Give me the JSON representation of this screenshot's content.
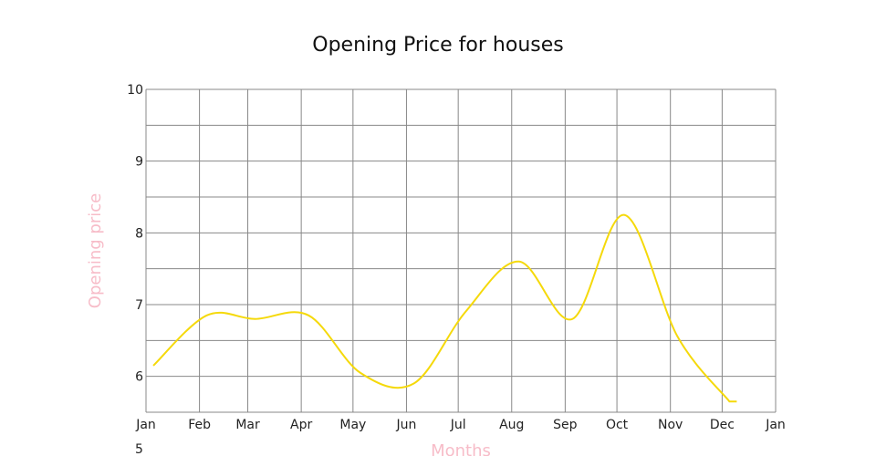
{
  "chart_data": {
    "type": "line",
    "title": "Opening Price for houses",
    "xlabel": "Months",
    "ylabel": "Opening price",
    "year_label": "5",
    "x_ticks": [
      "Jan",
      "Feb",
      "Mar",
      "Apr",
      "May",
      "Jun",
      "Jul",
      "Aug",
      "Sep",
      "Oct",
      "Nov",
      "Dec",
      "Jan"
    ],
    "y_ticks": [
      "6",
      "7",
      "8",
      "9",
      "10"
    ],
    "ylim": [
      5.5,
      10
    ],
    "grid": true,
    "series": [
      {
        "x": [
          "Jan",
          "Feb",
          "Mar",
          "Apr",
          "May",
          "Jun",
          "Jul",
          "Aug",
          "Sep",
          "Oct",
          "Nov",
          "Dec"
        ],
        "values": [
          6.15,
          6.85,
          6.8,
          6.85,
          6.05,
          5.9,
          6.9,
          7.6,
          6.8,
          8.25,
          6.55,
          5.65
        ],
        "color": "#f5d90a"
      }
    ],
    "colors": {
      "line": "#f5d90a",
      "axis_label": "#f7bcc8",
      "grid": "#888888"
    }
  }
}
